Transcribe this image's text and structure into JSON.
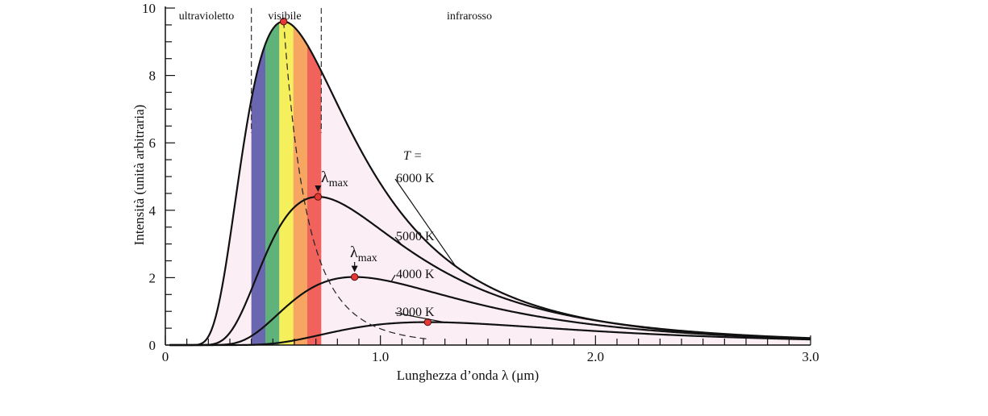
{
  "chart_data": {
    "type": "line",
    "xlabel": "Lunghezza d’onda  λ  (μm)",
    "ylabel": "Intensità (unità arbitraria)",
    "xlim": [
      0,
      3.0
    ],
    "ylim": [
      0,
      10
    ],
    "x_ticks": [
      "0",
      "1.0",
      "2.0",
      "3.0"
    ],
    "y_ticks": [
      "0",
      "2",
      "4",
      "6",
      "8",
      "10"
    ],
    "regions": [
      {
        "label": "ultravioletto",
        "from": 0,
        "to": 0.4
      },
      {
        "label": "visibile",
        "from": 0.4,
        "to": 0.725
      },
      {
        "label": "infrarosso",
        "from": 0.725,
        "to": 3.0
      }
    ],
    "visible_band_colors": [
      "#6b66b0",
      "#5fb27a",
      "#f4ef5a",
      "#f6a661",
      "#f0625b"
    ],
    "fill_color": "#fbeef5",
    "temperature_prefix": "T =",
    "peak_label": "λmax",
    "series": [
      {
        "name": "6000 K",
        "label": "6000 K",
        "temperature": 6000,
        "peak": [
          0.55,
          9.6
        ]
      },
      {
        "name": "5000 K",
        "label": "5000 K",
        "temperature": 5000,
        "peak": [
          0.71,
          4.4
        ]
      },
      {
        "name": "4000 K",
        "label": "4000 K",
        "temperature": 4000,
        "peak": [
          0.88,
          2.02
        ]
      },
      {
        "name": "3000 K",
        "label": "3000 K",
        "temperature": 3000,
        "peak": [
          1.22,
          0.68
        ]
      }
    ],
    "peak_marker_color": "#e53935"
  }
}
